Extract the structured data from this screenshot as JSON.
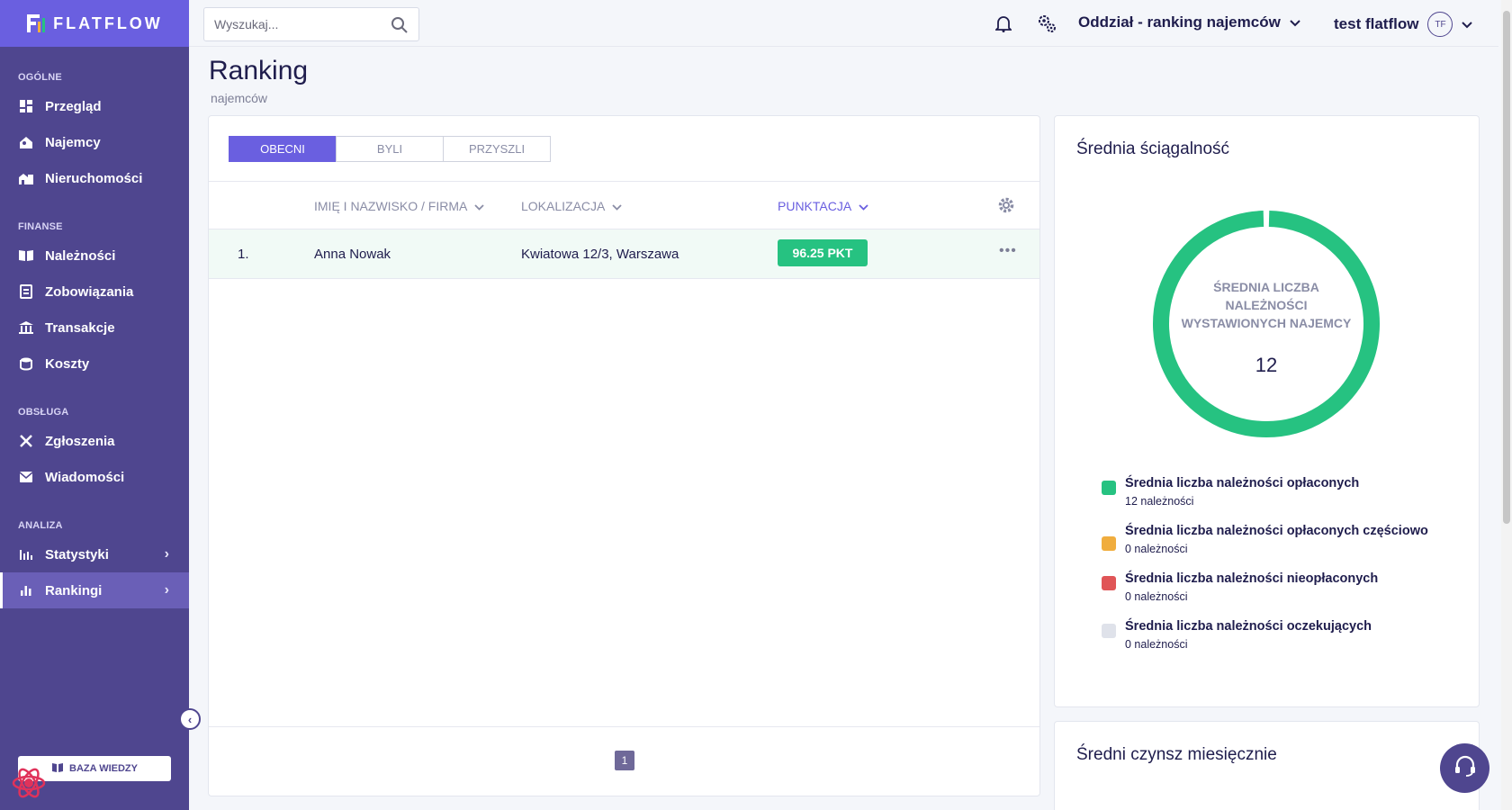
{
  "brand": {
    "name": "FLATFLOW"
  },
  "sidebar": {
    "sections": [
      {
        "label": "OGÓLNE",
        "items": [
          {
            "label": "Przegląd",
            "icon": "dashboard-icon"
          },
          {
            "label": "Najemcy",
            "icon": "tenant-icon"
          },
          {
            "label": "Nieruchomości",
            "icon": "buildings-icon"
          }
        ]
      },
      {
        "label": "FINANSE",
        "items": [
          {
            "label": "Należności",
            "icon": "book-icon"
          },
          {
            "label": "Zobowiązania",
            "icon": "invoice-icon"
          },
          {
            "label": "Transakcje",
            "icon": "bank-icon"
          },
          {
            "label": "Koszty",
            "icon": "coins-icon"
          }
        ]
      },
      {
        "label": "OBSŁUGA",
        "items": [
          {
            "label": "Zgłoszenia",
            "icon": "tools-icon"
          },
          {
            "label": "Wiadomości",
            "icon": "mail-icon"
          }
        ]
      },
      {
        "label": "ANALIZA",
        "items": [
          {
            "label": "Statystyki",
            "icon": "stats-icon"
          },
          {
            "label": "Rankingi",
            "icon": "bar-chart-icon"
          }
        ]
      }
    ],
    "knowledge_base": "BAZA WIEDZY"
  },
  "topbar": {
    "search_placeholder": "Wyszukaj...",
    "branch": "Oddział - ranking najemców",
    "user": "test flatflow",
    "avatar_initials": "TF"
  },
  "page": {
    "title": "Ranking",
    "subtitle": "najemców"
  },
  "tabs": [
    "OBECNI",
    "BYLI",
    "PRZYSZLI"
  ],
  "table": {
    "columns": [
      "IMIĘ I NAZWISKO / FIRMA",
      "LOKALIZACJA",
      "PUNKTACJA"
    ],
    "rows": [
      {
        "rank": "1.",
        "name": "Anna Nowak",
        "location": "Kwiatowa 12/3, Warszawa",
        "score": "96.25 PKT"
      }
    ],
    "page": "1"
  },
  "collection": {
    "title": "Średnia ściągalność",
    "center_label": "ŚREDNIA LICZBA NALEŻNOŚCI WYSTAWIONYCH NAJEMCY",
    "center_value": "12",
    "legend": [
      {
        "title": "Średnia liczba należności opłaconych",
        "sub": "12 należności",
        "color": "#26c281",
        "value": 12
      },
      {
        "title": "Średnia liczba należności opłaconych częściowo",
        "sub": "0 należności",
        "color": "#f0ad3e",
        "value": 0
      },
      {
        "title": "Średnia liczba należności nieopłaconych",
        "sub": "0 należności",
        "color": "#e05557",
        "value": 0
      },
      {
        "title": "Średnia liczba należności oczekujących",
        "sub": "0 należności",
        "color": "#dfe2ea",
        "value": 0
      }
    ]
  },
  "rent_card": {
    "title": "Średni czynsz miesięcznie"
  },
  "colors": {
    "accent": "#6a5fe0",
    "sidebar": "#4f468f",
    "success": "#26c281"
  }
}
